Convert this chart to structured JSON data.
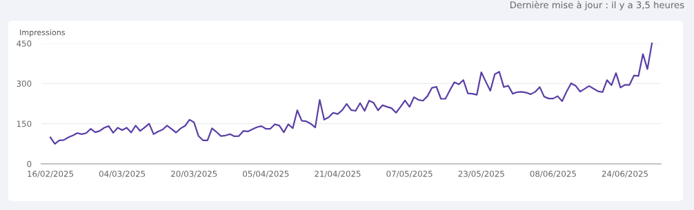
{
  "chart_data": {
    "type": "line",
    "ylabel": "Impressions",
    "annotations": [
      "Dernière mise à jour : il y a 3,5 heures"
    ],
    "x": [
      "2025-02-16",
      "2025-02-17",
      "2025-02-18",
      "2025-02-19",
      "2025-02-20",
      "2025-02-21",
      "2025-02-22",
      "2025-02-23",
      "2025-02-24",
      "2025-02-25",
      "2025-02-26",
      "2025-02-27",
      "2025-02-28",
      "2025-03-01",
      "2025-03-02",
      "2025-03-03",
      "2025-03-04",
      "2025-03-05",
      "2025-03-06",
      "2025-03-07",
      "2025-03-08",
      "2025-03-09",
      "2025-03-10",
      "2025-03-11",
      "2025-03-12",
      "2025-03-13",
      "2025-03-14",
      "2025-03-15",
      "2025-03-16",
      "2025-03-17",
      "2025-03-18",
      "2025-03-19",
      "2025-03-20",
      "2025-03-21",
      "2025-03-22",
      "2025-03-23",
      "2025-03-24",
      "2025-03-25",
      "2025-03-26",
      "2025-03-27",
      "2025-03-28",
      "2025-03-29",
      "2025-03-30",
      "2025-03-31",
      "2025-04-01",
      "2025-04-02",
      "2025-04-03",
      "2025-04-04",
      "2025-04-05",
      "2025-04-06",
      "2025-04-07",
      "2025-04-08",
      "2025-04-09",
      "2025-04-10",
      "2025-04-11",
      "2025-04-12",
      "2025-04-13",
      "2025-04-14",
      "2025-04-15",
      "2025-04-16",
      "2025-04-17",
      "2025-04-18",
      "2025-04-19",
      "2025-04-20",
      "2025-04-21",
      "2025-04-22",
      "2025-04-23",
      "2025-04-24",
      "2025-04-25",
      "2025-04-26",
      "2025-04-27",
      "2025-04-28",
      "2025-04-29",
      "2025-04-30",
      "2025-05-01",
      "2025-05-02",
      "2025-05-03",
      "2025-05-04",
      "2025-05-05",
      "2025-05-06",
      "2025-05-07",
      "2025-05-08",
      "2025-05-09",
      "2025-05-10",
      "2025-05-11",
      "2025-05-12",
      "2025-05-13",
      "2025-05-14",
      "2025-05-15",
      "2025-05-16",
      "2025-05-17",
      "2025-05-18",
      "2025-05-19",
      "2025-05-20",
      "2025-05-21",
      "2025-05-22",
      "2025-05-23",
      "2025-05-24",
      "2025-05-25",
      "2025-05-26",
      "2025-05-27",
      "2025-05-28",
      "2025-05-29",
      "2025-05-30",
      "2025-05-31",
      "2025-06-01",
      "2025-06-02",
      "2025-06-03",
      "2025-06-04",
      "2025-06-05",
      "2025-06-06",
      "2025-06-07",
      "2025-06-08",
      "2025-06-09",
      "2025-06-10",
      "2025-06-11",
      "2025-06-12",
      "2025-06-13",
      "2025-06-14",
      "2025-06-15",
      "2025-06-16",
      "2025-06-17",
      "2025-06-18",
      "2025-06-19",
      "2025-06-20",
      "2025-06-21",
      "2025-06-22",
      "2025-06-23",
      "2025-06-24",
      "2025-06-25",
      "2025-06-26",
      "2025-06-27",
      "2025-06-28",
      "2025-06-29",
      "2025-06-30"
    ],
    "series": [
      {
        "color": "#5a3ea6",
        "values": [
          99,
          75,
          88,
          89,
          99,
          106,
          115,
          111,
          115,
          131,
          118,
          123,
          135,
          141,
          116,
          135,
          126,
          135,
          117,
          143,
          123,
          136,
          150,
          111,
          121,
          128,
          143,
          130,
          117,
          132,
          142,
          165,
          155,
          104,
          88,
          88,
          133,
          119,
          104,
          106,
          111,
          103,
          104,
          123,
          121,
          129,
          137,
          141,
          131,
          131,
          148,
          143,
          118,
          148,
          133,
          200,
          161,
          159,
          150,
          136,
          239,
          165,
          174,
          191,
          186,
          200,
          224,
          201,
          198,
          227,
          198,
          236,
          228,
          200,
          219,
          213,
          208,
          191,
          213,
          237,
          213,
          249,
          239,
          236,
          253,
          284,
          288,
          243,
          243,
          275,
          305,
          297,
          313,
          263,
          262,
          258,
          342,
          307,
          273,
          335,
          344,
          287,
          292,
          262,
          268,
          269,
          266,
          260,
          269,
          287,
          251,
          244,
          244,
          253,
          234,
          270,
          301,
          292,
          270,
          280,
          291,
          281,
          271,
          268,
          313,
          294,
          339,
          285,
          295,
          295,
          330,
          328,
          410,
          354,
          450
        ]
      }
    ],
    "xlim": [
      "2025-02-14",
      "2025-07-02"
    ],
    "xticks": [
      {
        "value": "2025-02-16",
        "label": "16/02/2025"
      },
      {
        "value": "2025-03-04",
        "label": "04/03/2025"
      },
      {
        "value": "2025-03-20",
        "label": "20/03/2025"
      },
      {
        "value": "2025-04-05",
        "label": "05/04/2025"
      },
      {
        "value": "2025-04-21",
        "label": "21/04/2025"
      },
      {
        "value": "2025-05-07",
        "label": "07/05/2025"
      },
      {
        "value": "2025-05-23",
        "label": "23/05/2025"
      },
      {
        "value": "2025-06-08",
        "label": "08/06/2025"
      },
      {
        "value": "2025-06-24",
        "label": "24/06/2025"
      }
    ],
    "ylim": [
      0,
      450
    ],
    "yticks": [
      0,
      150,
      300,
      450
    ],
    "grid": "y",
    "legend": false,
    "marker": "none",
    "line_style": "solid"
  }
}
